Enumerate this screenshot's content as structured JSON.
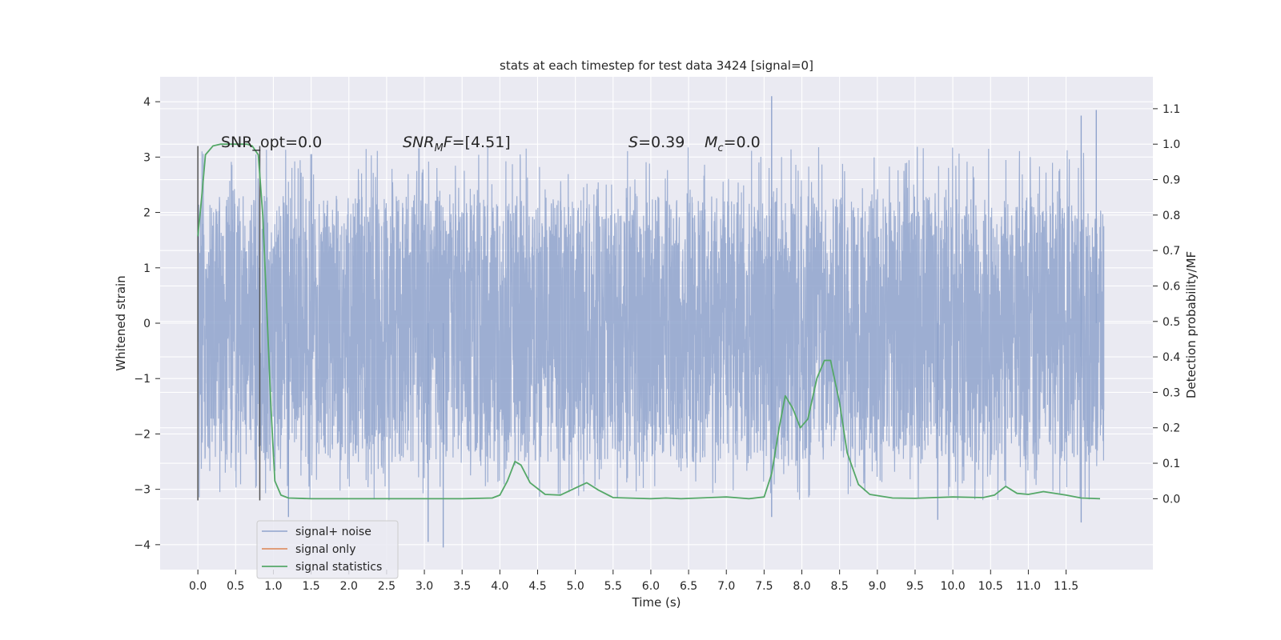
{
  "chart_data": {
    "type": "line",
    "title": "stats at each timestep for test data 3424 [signal=0]",
    "xlabel": "Time (s)",
    "ylabel": "Whitened strain",
    "y2label": "Detection probability/MF",
    "xlim": [
      -0.5,
      12.65
    ],
    "ylim": [
      -4.45,
      4.45
    ],
    "y2lim": [
      -0.2,
      1.19
    ],
    "x_ticks": [
      0.0,
      0.5,
      1.0,
      1.5,
      2.0,
      2.5,
      3.0,
      3.5,
      4.0,
      4.5,
      5.0,
      5.5,
      6.0,
      6.5,
      7.0,
      7.5,
      8.0,
      8.5,
      9.0,
      9.5,
      10.0,
      10.5,
      11.0,
      11.5
    ],
    "x_tick_labels": [
      "0.0",
      "0.5",
      "1.0",
      "1.5",
      "2.0",
      "2.5",
      "3.0",
      "3.5",
      "4.0",
      "4.5",
      "5.0",
      "5.5",
      "6.0",
      "6.5",
      "7.0",
      "7.5",
      "8.0",
      "8.5",
      "9.0",
      "9.5",
      "10.0",
      "10.5",
      "11.0",
      "11.5"
    ],
    "y_ticks": [
      4,
      3,
      2,
      1,
      0,
      -1,
      -2,
      -3,
      -4
    ],
    "y_tick_labels": [
      "4",
      "3",
      "2",
      "1",
      "0",
      "−1",
      "−2",
      "−3",
      "−4"
    ],
    "y2_ticks": [
      1.1,
      1.0,
      0.9,
      0.8,
      0.7,
      0.6,
      0.5,
      0.4,
      0.3,
      0.2,
      0.1,
      0.0
    ],
    "y2_tick_labels": [
      "1.1",
      "1.0",
      "0.9",
      "0.8",
      "0.7",
      "0.6",
      "0.5",
      "0.4",
      "0.3",
      "0.2",
      "0.1",
      "0.0"
    ],
    "grid": true,
    "legend_position": "lower-left",
    "series": [
      {
        "name": "signal+ noise",
        "color": "#8fa3cc",
        "axis": "left",
        "x_range": [
          0.0,
          12.0
        ],
        "core_band": [
          -1.3,
          1.3
        ],
        "typical_envelope": [
          -2.5,
          2.3
        ],
        "extremes": [
          [
            1.2,
            -3.5
          ],
          [
            3.05,
            -3.95
          ],
          [
            3.25,
            -4.05
          ],
          [
            7.6,
            4.1
          ],
          [
            7.6,
            -3.5
          ],
          [
            9.8,
            -3.55
          ],
          [
            11.7,
            3.75
          ],
          [
            11.7,
            -3.6
          ],
          [
            11.9,
            3.85
          ]
        ]
      },
      {
        "name": "signal only",
        "color": "#dd8452",
        "axis": "left",
        "points": []
      },
      {
        "name": "signal statistics",
        "color": "#55a868",
        "axis": "right",
        "points": [
          [
            0.0,
            0.74
          ],
          [
            0.05,
            0.85
          ],
          [
            0.1,
            0.97
          ],
          [
            0.2,
            0.995
          ],
          [
            0.3,
            1.0
          ],
          [
            0.5,
            1.0
          ],
          [
            0.65,
            1.0
          ],
          [
            0.72,
            0.995
          ],
          [
            0.8,
            0.97
          ],
          [
            0.86,
            0.8
          ],
          [
            0.92,
            0.5
          ],
          [
            0.97,
            0.25
          ],
          [
            1.02,
            0.05
          ],
          [
            1.1,
            0.01
          ],
          [
            1.2,
            0.002
          ],
          [
            1.5,
            0.0
          ],
          [
            2.0,
            0.0
          ],
          [
            3.0,
            0.0
          ],
          [
            3.5,
            0.0
          ],
          [
            3.9,
            0.002
          ],
          [
            4.0,
            0.01
          ],
          [
            4.1,
            0.05
          ],
          [
            4.2,
            0.105
          ],
          [
            4.28,
            0.095
          ],
          [
            4.4,
            0.045
          ],
          [
            4.6,
            0.012
          ],
          [
            4.8,
            0.01
          ],
          [
            5.0,
            0.03
          ],
          [
            5.15,
            0.045
          ],
          [
            5.3,
            0.025
          ],
          [
            5.5,
            0.003
          ],
          [
            6.0,
            0.0
          ],
          [
            6.2,
            0.002
          ],
          [
            6.4,
            0.0
          ],
          [
            7.0,
            0.005
          ],
          [
            7.3,
            0.0
          ],
          [
            7.5,
            0.005
          ],
          [
            7.6,
            0.07
          ],
          [
            7.7,
            0.2
          ],
          [
            7.78,
            0.29
          ],
          [
            7.88,
            0.255
          ],
          [
            7.98,
            0.2
          ],
          [
            8.08,
            0.225
          ],
          [
            8.2,
            0.34
          ],
          [
            8.3,
            0.39
          ],
          [
            8.38,
            0.39
          ],
          [
            8.5,
            0.27
          ],
          [
            8.6,
            0.13
          ],
          [
            8.75,
            0.04
          ],
          [
            8.9,
            0.012
          ],
          [
            9.2,
            0.002
          ],
          [
            9.5,
            0.001
          ],
          [
            10.0,
            0.005
          ],
          [
            10.4,
            0.003
          ],
          [
            10.55,
            0.01
          ],
          [
            10.7,
            0.035
          ],
          [
            10.85,
            0.015
          ],
          [
            11.0,
            0.012
          ],
          [
            11.2,
            0.02
          ],
          [
            11.5,
            0.01
          ],
          [
            11.7,
            0.002
          ],
          [
            11.95,
            0.0
          ]
        ]
      }
    ],
    "vertical_lines": [
      {
        "x": 0.0,
        "y_range": [
          -3.2,
          3.2
        ],
        "color": "#555555"
      },
      {
        "x": 0.82,
        "y_range": [
          -3.2,
          3.2
        ],
        "color": "#555555"
      }
    ],
    "annotations": [
      {
        "text": "SNR_opt=0.0",
        "x": 0.2,
        "y": 3.3
      },
      {
        "text": "SNR_MF=[4.51]",
        "x": 2.6,
        "y": 3.3
      },
      {
        "text": "S=0.39",
        "x": 5.6,
        "y": 3.3
      },
      {
        "text": "M_c=0.0",
        "x": 6.6,
        "y": 3.3
      }
    ]
  }
}
